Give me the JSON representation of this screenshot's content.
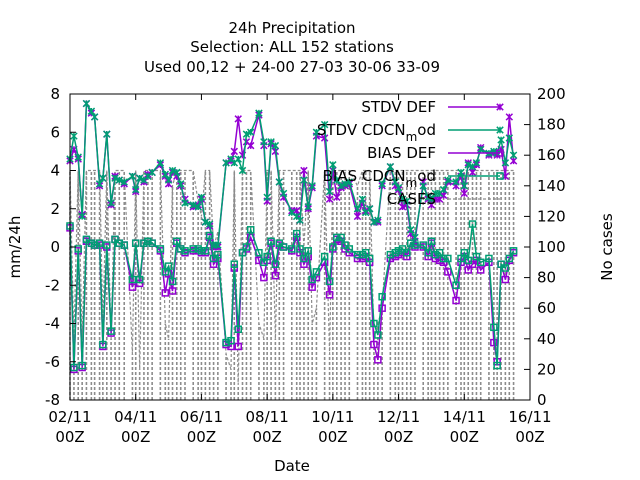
{
  "chart_data": {
    "type": "line",
    "title_lines": [
      "24h Precipitation",
      "Selection: ALL     152 stations",
      "Used  00,12  + 24-00 27-03 30-06 33-09"
    ],
    "xlabel": "Date",
    "ylabel": "mm/24h",
    "y2label": "No cases",
    "xlim": [
      0,
      14
    ],
    "ylim": [
      -8,
      8
    ],
    "y2lim": [
      0,
      200
    ],
    "grid": false,
    "legend_position": "top-right",
    "x_ticks": [
      {
        "x": 0,
        "l1": "02/11",
        "l2": "00Z"
      },
      {
        "x": 2,
        "l1": "04/11",
        "l2": "00Z"
      },
      {
        "x": 4,
        "l1": "06/11",
        "l2": "00Z"
      },
      {
        "x": 6,
        "l1": "08/11",
        "l2": "00Z"
      },
      {
        "x": 8,
        "l1": "10/11",
        "l2": "00Z"
      },
      {
        "x": 10,
        "l1": "12/11",
        "l2": "00Z"
      },
      {
        "x": 12,
        "l1": "14/11",
        "l2": "00Z"
      },
      {
        "x": 14,
        "l1": "16/11",
        "l2": "00Z"
      }
    ],
    "y_ticks": [
      "-8",
      "-6",
      "-4",
      "-2",
      "0",
      "2",
      "4",
      "6",
      "8"
    ],
    "y2_ticks": [
      "0",
      "20",
      "40",
      "60",
      "80",
      "100",
      "120",
      "140",
      "160",
      "180",
      "200"
    ],
    "x": [
      0.0,
      0.12,
      0.25,
      0.37,
      0.5,
      0.65,
      0.75,
      0.9,
      1.0,
      1.12,
      1.25,
      1.37,
      1.5,
      1.65,
      1.9,
      2.0,
      2.12,
      2.25,
      2.37,
      2.5,
      2.75,
      2.9,
      3.0,
      3.12,
      3.25,
      3.37,
      3.5,
      3.75,
      3.9,
      4.0,
      4.12,
      4.25,
      4.37,
      4.5,
      4.75,
      4.9,
      5.0,
      5.12,
      5.25,
      5.37,
      5.5,
      5.75,
      5.9,
      6.0,
      6.12,
      6.25,
      6.37,
      6.5,
      6.75,
      6.9,
      7.0,
      7.12,
      7.25,
      7.37,
      7.5,
      7.75,
      7.9,
      8.0,
      8.12,
      8.25,
      8.37,
      8.5,
      8.75,
      8.9,
      9.0,
      9.12,
      9.25,
      9.37,
      9.5,
      9.75,
      9.9,
      10.0,
      10.12,
      10.25,
      10.37,
      10.5,
      10.75,
      10.9,
      11.0,
      11.12,
      11.25,
      11.37,
      11.5,
      11.75,
      11.9,
      12.0,
      12.12,
      12.25,
      12.37,
      12.5,
      12.75,
      12.9,
      13.0,
      13.12,
      13.25,
      13.37,
      13.5
    ],
    "series": [
      {
        "name": "STDV DEF",
        "color": "#9400d3",
        "marker": "x",
        "axis": "y1",
        "values": [
          4.5,
          5.1,
          4.6,
          1.7,
          7.5,
          7.0,
          6.8,
          3.2,
          3.6,
          5.9,
          2.2,
          3.7,
          3.5,
          3.3,
          3.7,
          2.9,
          3.6,
          3.4,
          3.8,
          3.9,
          4.3,
          3.7,
          3.3,
          3.9,
          3.7,
          3.2,
          2.5,
          2.1,
          2.2,
          2.5,
          1.3,
          1.1,
          0.0,
          0.0,
          4.4,
          4.5,
          5.0,
          6.7,
          4.8,
          5.5,
          5.3,
          6.9,
          5.3,
          2.4,
          5.4,
          5.0,
          3.4,
          2.6,
          1.9,
          1.9,
          1.4,
          4.0,
          2.0,
          3.1,
          5.8,
          5.7,
          2.5,
          4.0,
          2.6,
          3.1,
          3.2,
          3.3,
          1.6,
          2.3,
          1.9,
          2.0,
          1.3,
          1.3,
          3.2,
          4.2,
          3.2,
          3.0,
          2.1,
          2.2,
          0.7,
          0.3,
          3.4,
          2.5,
          2.2,
          2.5,
          2.5,
          2.7,
          3.4,
          3.2,
          3.7,
          2.8,
          4.4,
          3.9,
          4.3,
          5.2,
          4.8,
          4.9,
          4.8,
          5.1,
          3.7,
          6.8,
          4.5
        ]
      },
      {
        "name": "STDV CDCN_mod",
        "color": "#009e73",
        "marker": "x",
        "axis": "y1",
        "values": [
          4.6,
          5.8,
          4.7,
          1.6,
          7.5,
          7.1,
          6.8,
          3.3,
          3.6,
          5.9,
          2.3,
          3.6,
          3.5,
          3.4,
          3.7,
          3.0,
          3.6,
          3.5,
          3.7,
          3.9,
          4.4,
          3.8,
          3.5,
          4.0,
          3.9,
          3.3,
          2.3,
          2.2,
          2.1,
          2.6,
          1.3,
          1.2,
          0.1,
          0.1,
          4.4,
          4.6,
          4.4,
          4.6,
          4.0,
          5.9,
          6.0,
          7.0,
          5.5,
          2.6,
          5.5,
          5.3,
          3.4,
          2.8,
          1.8,
          1.6,
          1.4,
          3.5,
          2.1,
          3.2,
          6.0,
          6.4,
          2.9,
          4.3,
          3.5,
          3.2,
          3.3,
          3.4,
          2.0,
          2.5,
          1.8,
          2.0,
          1.3,
          1.4,
          3.3,
          4.2,
          3.4,
          3.1,
          2.5,
          2.4,
          0.9,
          0.5,
          3.2,
          2.6,
          2.5,
          2.8,
          2.8,
          3.0,
          3.5,
          3.4,
          3.9,
          3.2,
          4.3,
          4.2,
          4.4,
          5.1,
          4.9,
          5.0,
          4.9,
          5.6,
          4.4,
          5.7,
          4.8
        ]
      },
      {
        "name": "BIAS DEF",
        "color": "#9400d3",
        "marker": "square",
        "axis": "y1",
        "values": [
          1.0,
          -6.4,
          -0.2,
          -6.3,
          0.3,
          0.2,
          0.1,
          0.1,
          -5.2,
          0.0,
          -4.5,
          0.4,
          0.2,
          0.1,
          -2.1,
          0.2,
          -1.9,
          0.2,
          0.3,
          0.2,
          -0.2,
          -2.4,
          -1.4,
          -2.3,
          0.2,
          -0.1,
          -0.3,
          -0.2,
          -0.2,
          -0.3,
          -0.3,
          0.5,
          -0.9,
          -0.6,
          -5.1,
          -5.2,
          -1.1,
          -5.2,
          -0.3,
          -0.1,
          0.5,
          -0.7,
          -1.6,
          -0.7,
          0.2,
          -1.5,
          0.1,
          0.0,
          -0.2,
          0.5,
          -0.3,
          -0.9,
          -0.5,
          -2.1,
          -1.6,
          -0.8,
          -2.5,
          -0.1,
          0.4,
          0.3,
          -0.1,
          -0.3,
          -0.6,
          -0.6,
          -0.5,
          -0.8,
          -5.1,
          -5.9,
          -3.2,
          -0.6,
          -0.5,
          -0.4,
          -0.3,
          -0.5,
          0.2,
          0.0,
          0.0,
          -0.5,
          0.2,
          -0.6,
          -0.7,
          -0.8,
          -1.3,
          -2.8,
          -0.8,
          -0.5,
          -1.2,
          -0.9,
          -0.7,
          -1.2,
          -0.8,
          -5.0,
          -6.0,
          -0.9,
          -1.7,
          -0.7,
          -0.3
        ]
      },
      {
        "name": "BIAS CDCN_mod",
        "color": "#009e73",
        "marker": "square",
        "axis": "y1",
        "values": [
          1.1,
          -6.3,
          -0.1,
          -6.2,
          0.4,
          0.2,
          0.1,
          0.2,
          -5.1,
          0.1,
          -4.4,
          0.4,
          0.2,
          0.1,
          -1.7,
          0.2,
          -1.7,
          0.2,
          0.3,
          0.2,
          -0.1,
          -1.3,
          -1.0,
          -1.8,
          0.3,
          -0.1,
          -0.2,
          -0.1,
          -0.1,
          -0.2,
          -0.2,
          0.6,
          -0.6,
          -0.4,
          -5.0,
          -4.9,
          -0.9,
          -4.3,
          -0.3,
          0.0,
          0.9,
          -0.3,
          -0.8,
          -0.5,
          0.3,
          -0.9,
          0.2,
          0.0,
          -0.1,
          0.7,
          -0.1,
          -0.6,
          -0.2,
          -1.7,
          -1.3,
          -0.5,
          -1.8,
          0.0,
          0.5,
          0.5,
          0.1,
          -0.1,
          -0.4,
          -0.4,
          -0.3,
          -0.6,
          -4.0,
          -4.6,
          -2.6,
          -0.4,
          -0.3,
          -0.2,
          -0.1,
          -0.3,
          0.2,
          0.1,
          0.1,
          -0.3,
          0.3,
          -0.4,
          -0.3,
          -0.6,
          -0.6,
          -2.0,
          -0.6,
          -0.3,
          -0.7,
          1.2,
          -0.5,
          -0.8,
          -0.6,
          -4.2,
          -6.2,
          -0.9,
          -1.1,
          -0.6,
          -0.2
        ]
      }
    ],
    "cases": {
      "name": "CASES",
      "color": "#8c8c8c",
      "axis": "y2",
      "values": [
        150,
        40,
        150,
        40,
        150,
        150,
        150,
        150,
        50,
        150,
        40,
        150,
        150,
        150,
        30,
        150,
        20,
        150,
        150,
        150,
        150,
        50,
        40,
        140,
        150,
        150,
        150,
        150,
        130,
        120,
        150,
        150,
        100,
        110,
        30,
        20,
        150,
        10,
        150,
        150,
        150,
        50,
        40,
        150,
        150,
        40,
        150,
        150,
        150,
        150,
        150,
        100,
        150,
        50,
        60,
        150,
        30,
        150,
        150,
        150,
        150,
        150,
        140,
        150,
        150,
        150,
        40,
        50,
        60,
        150,
        150,
        150,
        150,
        150,
        150,
        150,
        150,
        150,
        150,
        150,
        150,
        150,
        150,
        150,
        150,
        150,
        150,
        150,
        150,
        150,
        150,
        150,
        150,
        150,
        150,
        150,
        150
      ]
    }
  },
  "legend": [
    {
      "label": "STDV DEF"
    },
    {
      "label_main": "STDV CDCN",
      "label_sub": "m",
      "label_tail": "od"
    },
    {
      "label": "BIAS DEF"
    },
    {
      "label_main": "BIAS CDCN",
      "label_sub": "m",
      "label_tail": "od"
    },
    {
      "label": "CASES"
    }
  ]
}
